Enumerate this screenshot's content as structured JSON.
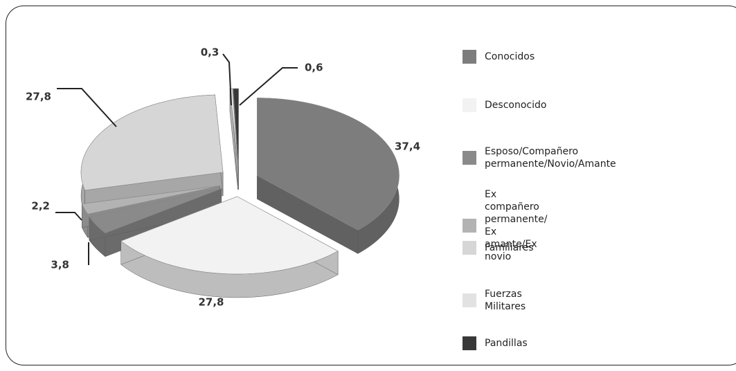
{
  "chart_data": {
    "type": "pie",
    "categories": [
      "Conocidos",
      "Desconocido",
      "Esposo/Compañero permanente/Novio/Amante",
      "Ex compañero permanente/\nEx amante/Ex novio",
      "Familiares",
      "Fuerzas Militares",
      "Pandillas"
    ],
    "values": [
      37.4,
      27.8,
      3.8,
      2.2,
      27.8,
      0.3,
      0.6
    ],
    "value_labels": [
      "37,4",
      "27,8",
      "3,8",
      "2,2",
      "27,8",
      "0,3",
      "0,6"
    ],
    "colors": [
      "#7d7d7d",
      "#f2f2f2",
      "#8a8a8a",
      "#b3b3b3",
      "#d6d6d6",
      "#e2e2e2",
      "#383838"
    ],
    "legend": "right"
  }
}
